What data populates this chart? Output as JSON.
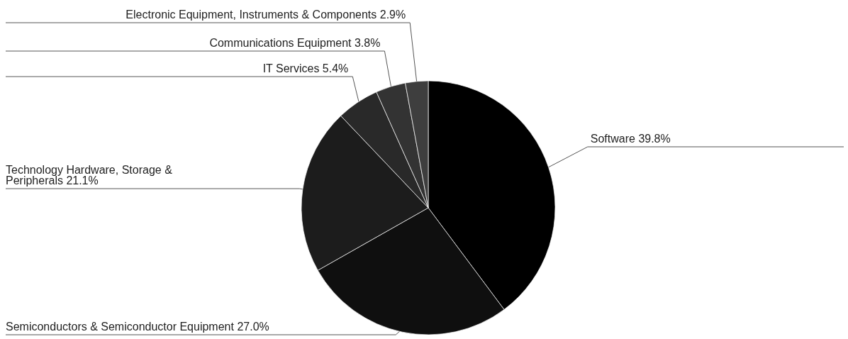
{
  "chart_data": {
    "type": "pie",
    "categories": [
      "Software",
      "Semiconductors & Semiconductor Equipment",
      "Technology Hardware, Storage & Peripherals",
      "IT Services",
      "Communications Equipment",
      "Electronic Equipment, Instruments & Components"
    ],
    "values": [
      39.8,
      27.0,
      21.1,
      5.4,
      3.8,
      2.9
    ],
    "value_labels": [
      "39.8%",
      "27.0%",
      "21.1%",
      "5.4%",
      "3.8%",
      "2.9%"
    ],
    "colors": [
      "#000000",
      "#0f0f0f",
      "#1c1c1c",
      "#292929",
      "#333333",
      "#3e3e3e"
    ]
  }
}
